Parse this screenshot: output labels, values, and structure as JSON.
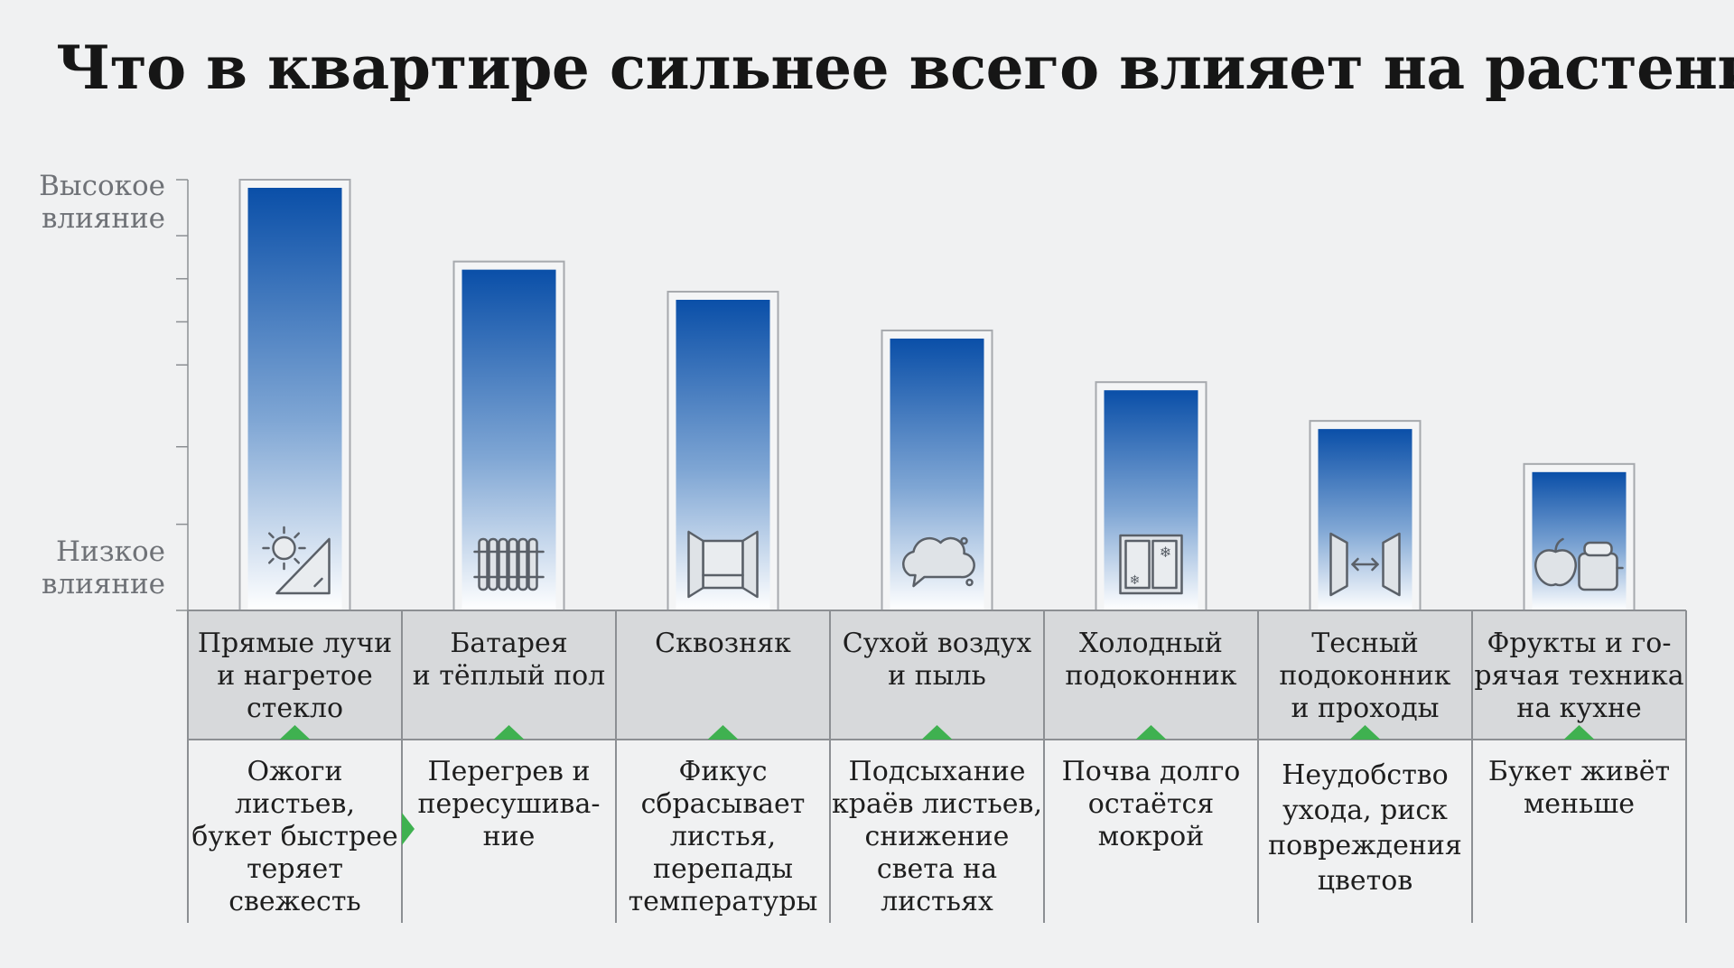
{
  "chart_data": {
    "type": "bar",
    "title": "Что в квартире сильнее всего влияет на растения",
    "y_axis": {
      "high_label": [
        "Высокое",
        "влияние"
      ],
      "low_label": [
        "Низкое",
        "влияние"
      ],
      "ylim": [
        0,
        100
      ],
      "ticks": [
        0,
        20,
        38,
        57,
        67,
        77,
        87,
        100
      ]
    },
    "grid": false,
    "legend": "none",
    "colors": {
      "bar_top": "#0a4fa8",
      "bar_bottom": "#ffffff",
      "accent": "#3fb150",
      "header_bg": "#d7d9db"
    },
    "categories": [
      {
        "icon": "sun-glass-icon",
        "factor": [
          "Прямые лучи",
          "и нагретое",
          "стекло"
        ],
        "effect": [
          "Ожоги",
          "листьев,",
          "букет быстрее",
          "теряет",
          "свежесть"
        ]
      },
      {
        "icon": "radiator-icon",
        "factor": [
          "Батарея",
          "и тёплый пол"
        ],
        "effect": [
          "Перегрев и",
          "пересушива-",
          "ние"
        ]
      },
      {
        "icon": "open-window-icon",
        "factor": [
          "Сквозняк"
        ],
        "effect": [
          "Фикус",
          "сбрасывает",
          "листья,",
          "перепады",
          "температуры"
        ]
      },
      {
        "icon": "dust-cloud-icon",
        "factor": [
          "Сухой воздух",
          "и пыль"
        ],
        "effect": [
          "Подсыхание",
          "краёв листьев,",
          "снижение",
          "света на",
          "листьях"
        ]
      },
      {
        "icon": "cold-window-icon",
        "factor": [
          "Холодный",
          "подоконник"
        ],
        "effect": [
          "Почва долго",
          "остаётся",
          "мокрой"
        ]
      },
      {
        "icon": "passage-icon",
        "factor": [
          "Тесный",
          "подоконник",
          "и проходы"
        ],
        "effect": [
          "Неудобство",
          "ухода, риск",
          "повреждения",
          "цветов"
        ]
      },
      {
        "icon": "kitchen-icon",
        "factor": [
          "Фрукты и го-",
          "рячая техника",
          "на кухне"
        ],
        "effect": [
          "Букет живёт",
          "меньше"
        ]
      }
    ],
    "values": [
      100,
      81,
      74,
      65,
      53,
      44,
      34
    ]
  }
}
